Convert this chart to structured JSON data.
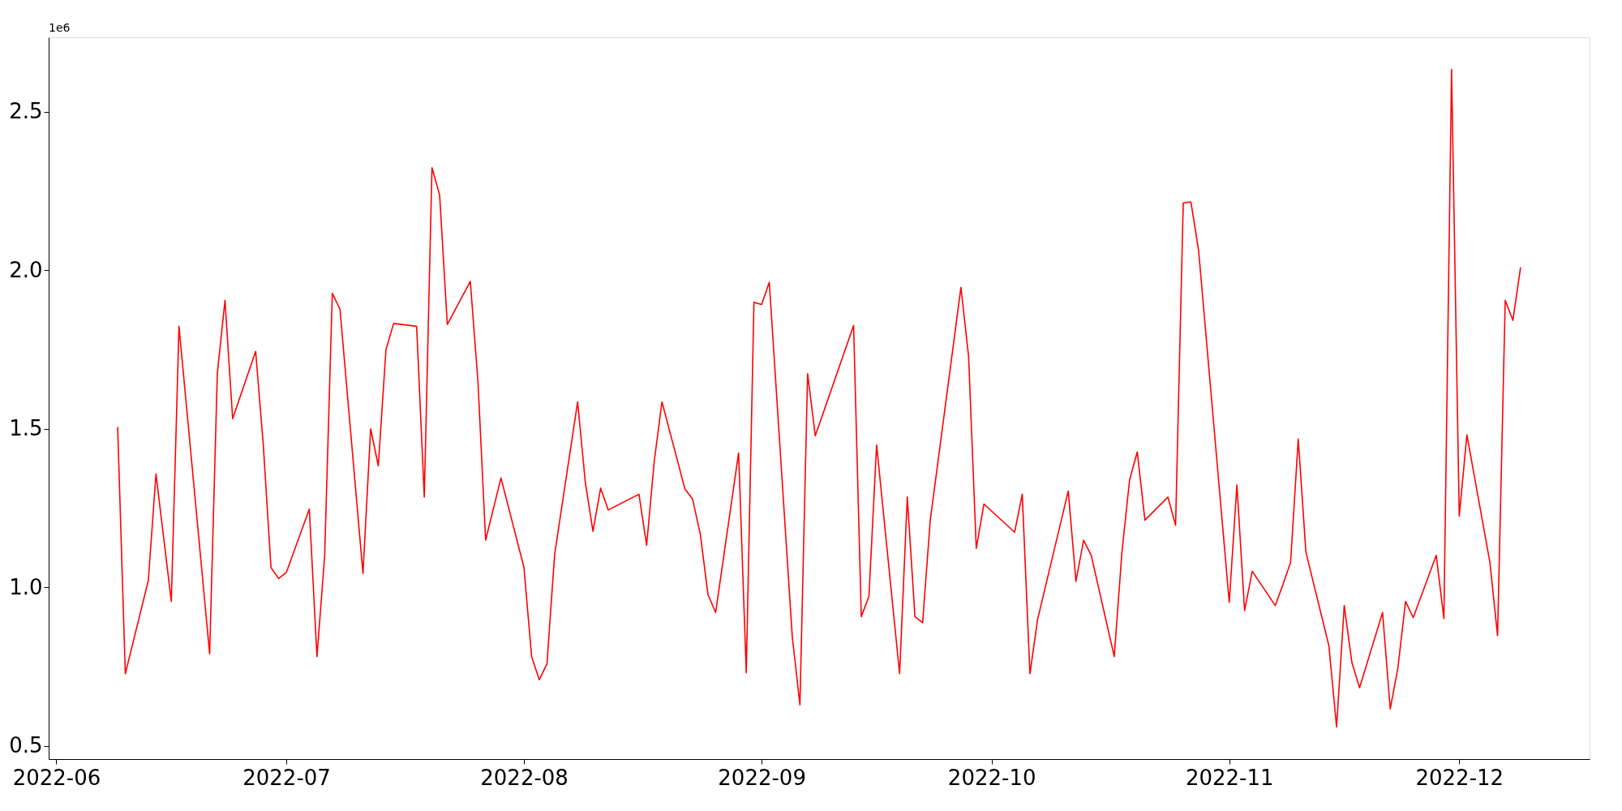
{
  "chart_data": {
    "type": "line",
    "x": [
      "2022-06-09",
      "2022-06-10",
      "2022-06-13",
      "2022-06-14",
      "2022-06-16",
      "2022-06-17",
      "2022-06-21",
      "2022-06-22",
      "2022-06-23",
      "2022-06-24",
      "2022-06-27",
      "2022-06-28",
      "2022-06-29",
      "2022-06-30",
      "2022-07-01",
      "2022-07-04",
      "2022-07-05",
      "2022-07-06",
      "2022-07-07",
      "2022-07-08",
      "2022-07-11",
      "2022-07-12",
      "2022-07-13",
      "2022-07-14",
      "2022-07-15",
      "2022-07-18",
      "2022-07-19",
      "2022-07-20",
      "2022-07-21",
      "2022-07-22",
      "2022-07-25",
      "2022-07-26",
      "2022-07-27",
      "2022-07-29",
      "2022-08-01",
      "2022-08-02",
      "2022-08-03",
      "2022-08-04",
      "2022-08-05",
      "2022-08-08",
      "2022-08-09",
      "2022-08-10",
      "2022-08-11",
      "2022-08-12",
      "2022-08-16",
      "2022-08-17",
      "2022-08-18",
      "2022-08-19",
      "2022-08-22",
      "2022-08-23",
      "2022-08-24",
      "2022-08-25",
      "2022-08-26",
      "2022-08-29",
      "2022-08-30",
      "2022-08-31",
      "2022-09-01",
      "2022-09-02",
      "2022-09-05",
      "2022-09-06",
      "2022-09-07",
      "2022-09-08",
      "2022-09-13",
      "2022-09-14",
      "2022-09-15",
      "2022-09-16",
      "2022-09-19",
      "2022-09-20",
      "2022-09-21",
      "2022-09-22",
      "2022-09-23",
      "2022-09-27",
      "2022-09-28",
      "2022-09-29",
      "2022-09-30",
      "2022-10-04",
      "2022-10-05",
      "2022-10-06",
      "2022-10-07",
      "2022-10-11",
      "2022-10-12",
      "2022-10-13",
      "2022-10-14",
      "2022-10-17",
      "2022-10-18",
      "2022-10-19",
      "2022-10-20",
      "2022-10-21",
      "2022-10-24",
      "2022-10-25",
      "2022-10-26",
      "2022-10-27",
      "2022-10-28",
      "2022-11-01",
      "2022-11-02",
      "2022-11-03",
      "2022-11-04",
      "2022-11-07",
      "2022-11-08",
      "2022-11-09",
      "2022-11-10",
      "2022-11-11",
      "2022-11-14",
      "2022-11-15",
      "2022-11-16",
      "2022-11-17",
      "2022-11-18",
      "2022-11-21",
      "2022-11-22",
      "2022-11-23",
      "2022-11-24",
      "2022-11-25",
      "2022-11-28",
      "2022-11-29",
      "2022-11-30",
      "2022-12-01",
      "2022-12-02",
      "2022-12-05",
      "2022-12-06",
      "2022-12-07",
      "2022-12-08",
      "2022-12-09"
    ],
    "series": [
      {
        "color": "#ff0000",
        "values": [
          1.506,
          0.728,
          1.022,
          1.358,
          0.956,
          1.823,
          0.791,
          1.674,
          1.905,
          1.532,
          1.744,
          1.449,
          1.063,
          1.028,
          1.047,
          1.247,
          0.782,
          1.098,
          1.927,
          1.877,
          1.044,
          1.5,
          1.383,
          1.75,
          1.832,
          1.823,
          1.285,
          2.323,
          2.237,
          1.829,
          1.965,
          1.649,
          1.149,
          1.345,
          1.063,
          0.782,
          0.709,
          0.759,
          1.104,
          1.585,
          1.332,
          1.177,
          1.313,
          1.244,
          1.294,
          1.133,
          1.399,
          1.585,
          1.31,
          1.278,
          1.168,
          0.978,
          0.921,
          1.424,
          0.731,
          1.899,
          1.892,
          1.962,
          0.845,
          0.63,
          1.674,
          1.478,
          1.826,
          0.908,
          0.972,
          1.449,
          0.728,
          1.285,
          0.908,
          0.889,
          1.212,
          1.946,
          1.728,
          1.123,
          1.263,
          1.174,
          1.294,
          0.728,
          0.899,
          1.304,
          1.019,
          1.149,
          1.101,
          0.782,
          1.111,
          1.339,
          1.427,
          1.212,
          1.285,
          1.196,
          2.212,
          2.215,
          2.063,
          0.953,
          1.323,
          0.927,
          1.051,
          0.943,
          1.009,
          1.079,
          1.468,
          1.111,
          0.816,
          0.56,
          0.943,
          0.763,
          0.684,
          0.921,
          0.617,
          0.747,
          0.956,
          0.905,
          1.101,
          0.902,
          2.633,
          1.225,
          1.481,
          1.079,
          0.848,
          1.905,
          1.842,
          2.009
        ]
      }
    ],
    "xlim": [
      "2022-05-31",
      "2022-12-18"
    ],
    "xticks": [
      {
        "value": "2022-06-01",
        "label": "2022-06"
      },
      {
        "value": "2022-07-01",
        "label": "2022-07"
      },
      {
        "value": "2022-08-01",
        "label": "2022-08"
      },
      {
        "value": "2022-09-01",
        "label": "2022-09"
      },
      {
        "value": "2022-10-01",
        "label": "2022-10"
      },
      {
        "value": "2022-11-01",
        "label": "2022-11"
      },
      {
        "value": "2022-12-01",
        "label": "2022-12"
      }
    ],
    "ylim": [
      0.459,
      2.734
    ],
    "yticks": [
      {
        "value": 0.5,
        "label": "0.5"
      },
      {
        "value": 1.0,
        "label": "1.0"
      },
      {
        "value": 1.5,
        "label": "1.5"
      },
      {
        "value": 2.0,
        "label": "2.0"
      },
      {
        "value": 2.5,
        "label": "2.5"
      }
    ],
    "annotations": [
      "1e6"
    ],
    "grid": false,
    "marker": "none",
    "line_style": "solid"
  }
}
